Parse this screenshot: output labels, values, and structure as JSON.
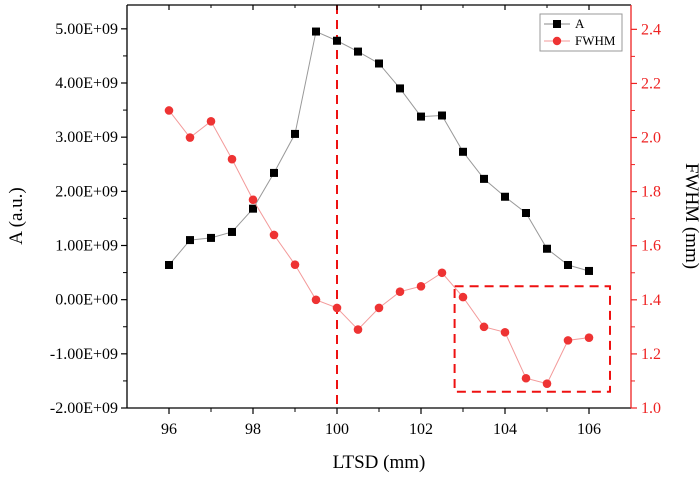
{
  "chart_data": {
    "type": "line",
    "title": "",
    "xlabel": "LTSD (mm)",
    "ylabel": "A (a.u.)",
    "ylabel_right": "FWHM (mm)",
    "xlim": [
      95,
      107
    ],
    "ylim": [
      -2000000000,
      5440000000
    ],
    "ylim_right": [
      1.0,
      2.49
    ],
    "x_ticks": [
      96,
      98,
      100,
      102,
      104,
      106
    ],
    "x_tick_labels": [
      "96",
      "98",
      "100",
      "102",
      "104",
      "106"
    ],
    "y_ticks": [
      -2000000000,
      -1000000000,
      0,
      1000000000,
      2000000000,
      3000000000,
      4000000000,
      5000000000
    ],
    "y_tick_labels": [
      "-2.00E+09",
      "-1.00E+09",
      "0.00E+00",
      "1.00E+09",
      "2.00E+09",
      "3.00E+09",
      "4.00E+09",
      "5.00E+09"
    ],
    "y_right_ticks": [
      1.0,
      1.2,
      1.4,
      1.6,
      1.8,
      2.0,
      2.2,
      2.4
    ],
    "y_right_tick_labels": [
      "1.0",
      "1.2",
      "1.4",
      "1.6",
      "1.8",
      "2.0",
      "2.2",
      "2.4"
    ],
    "grid": false,
    "legend_position": "top-right",
    "x": [
      96,
      96.5,
      97,
      97.5,
      98,
      98.5,
      99,
      99.5,
      100,
      100.5,
      101,
      101.5,
      102,
      102.5,
      103,
      103.5,
      104,
      104.5,
      105,
      105.5,
      106
    ],
    "series": [
      {
        "name": "A",
        "axis": "left",
        "marker": "square",
        "color": "#000000",
        "line_color": "#999999",
        "values": [
          640000000,
          1100000000,
          1140000000,
          1250000000,
          1680000000,
          2340000000,
          3060000000,
          4950000000,
          4780000000,
          4580000000,
          4360000000,
          3900000000,
          3380000000,
          3400000000,
          2730000000,
          2230000000,
          1900000000,
          1600000000,
          940000000,
          640000000,
          530000000
        ]
      },
      {
        "name": "FWHM",
        "axis": "right",
        "marker": "circle",
        "color": "#ee3333",
        "line_color": "#f39a9a",
        "values": [
          2.1,
          2.0,
          2.06,
          1.92,
          1.77,
          1.64,
          1.53,
          1.4,
          1.37,
          1.29,
          1.37,
          1.43,
          1.45,
          1.5,
          1.41,
          1.3,
          1.28,
          1.11,
          1.09,
          1.25,
          1.26
        ]
      }
    ],
    "annotations": [
      {
        "type": "vertical-dashed-line",
        "x": 100,
        "color": "#ee1111"
      },
      {
        "type": "dashed-rectangle",
        "x_range": [
          102.8,
          106.5
        ],
        "y_right_range": [
          1.06,
          1.45
        ],
        "color": "#ee1111"
      }
    ],
    "axis_colors": {
      "left": "#000000",
      "right": "#ee2222"
    }
  }
}
